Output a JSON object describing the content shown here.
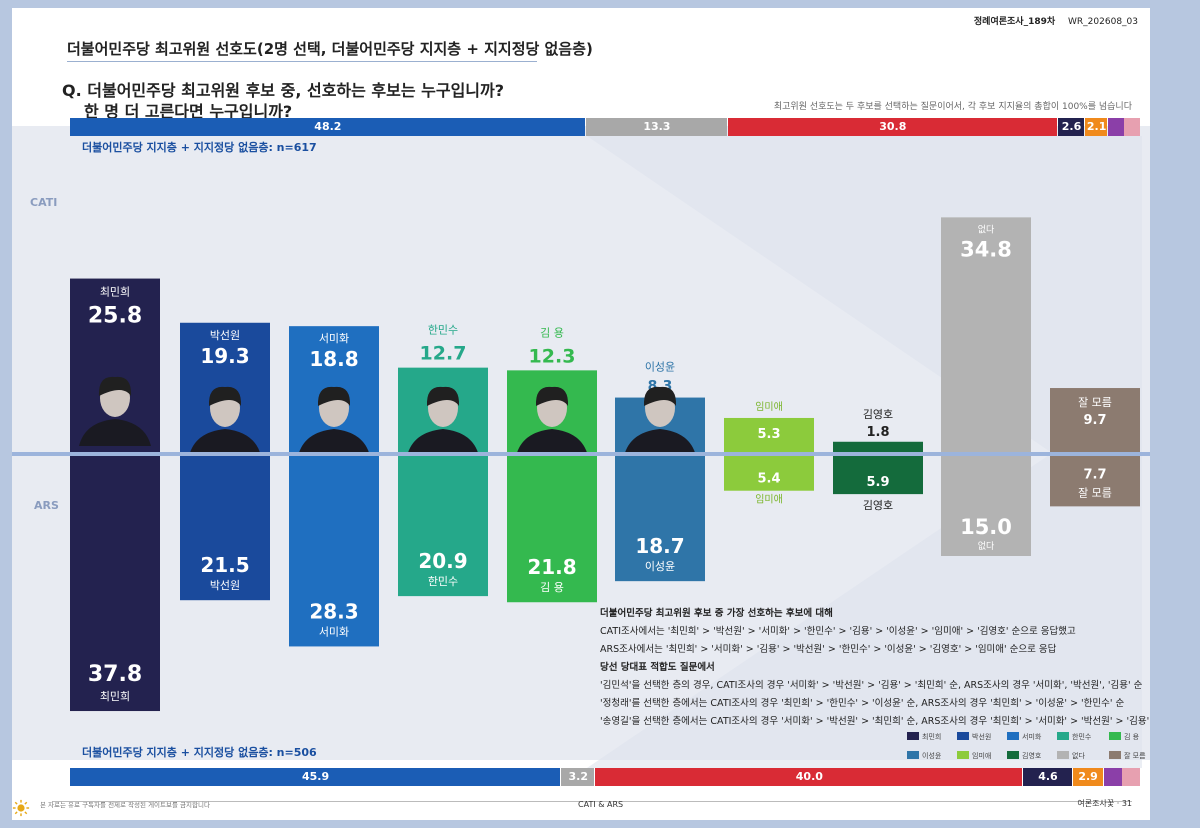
{
  "header": {
    "title": "더불어민주당 최고위원 선호도(2명 선택, 더불어민주당 지지층 + 지지정당 없음층)",
    "question_line1": "Q. 더불어민주당 최고위원 후보 중, 선호하는 후보는 누구입니까?",
    "question_line2": "한 명 더 고른다면 누구입니까?",
    "note": "최고위원 선호도는 두 후보를 선택하는 질문이어서, 각 후보 지지율의 총합이 100%를 넘습니다",
    "source_label": "정례여론조사_189차",
    "report_code": "WR_202608_03"
  },
  "group_top": "더불어민주당 지지층 + 지지정당 없음층: n=617",
  "group_bottom": "더불어민주당 지지층 + 지지정당 없음층: n=506",
  "mode_top": "CATI",
  "mode_bottom": "ARS",
  "colors": {
    "blue": "#1b5db5",
    "gray": "#a8a8a8",
    "red": "#d92b35",
    "navy": "#23224f",
    "orange": "#f08a1c",
    "purple": "#8b3fa8",
    "pink": "#e7a0b0"
  },
  "chart_data": {
    "type": "bar",
    "categories": [
      "최민희",
      "박선원",
      "서미화",
      "한민수",
      "김 용",
      "이성윤",
      "임미애",
      "김영호",
      "없다",
      "잘 모름"
    ],
    "series": [
      {
        "name": "CATI",
        "values": [
          25.8,
          19.3,
          18.8,
          12.7,
          12.3,
          8.3,
          5.3,
          1.8,
          34.8,
          9.7
        ]
      },
      {
        "name": "ARS",
        "values": [
          37.8,
          21.5,
          28.3,
          20.9,
          21.8,
          18.7,
          5.4,
          5.9,
          15.0,
          7.7
        ]
      }
    ],
    "bar_colors": [
      "#23224f",
      "#1a4a9c",
      "#1f6fc0",
      "#25a88a",
      "#34b94f",
      "#2f75a8",
      "#8ccb3c",
      "#146b3c",
      "#b3b3b3",
      "#8c7b70"
    ],
    "stacked_top": [
      48.2,
      13.3,
      30.8,
      2.6,
      2.1
    ],
    "stacked_bottom": [
      45.9,
      3.2,
      40.0,
      4.6,
      2.9
    ]
  },
  "stack_top_labels": [
    "48.2",
    "13.3",
    "30.8",
    "2.6",
    "2.1"
  ],
  "stack_bottom_labels": [
    "45.9",
    "3.2",
    "40.0",
    "4.6",
    "2.9"
  ],
  "paragraph": [
    "더불어민주당 최고위원 후보 중 가장 선호하는 후보에 대해",
    "CATI조사에서는 '최민희' > '박선원' > '서미화' > '한민수' > '김용' > '이성윤' > '임미애' > '김영호' 순으로 응답했고",
    "ARS조사에서는 '최민희' > '서미화' > '김용' > '박선원' > '한민수' > '이성윤' > '김영호' > '임미애' 순으로 응답",
    "당선 당대표 적합도 질문에서",
    "'김민석'을 선택한 층의 경우, CATI조사의 경우 '서미화' > '박선원' > '김용' > '최민희' 순, ARS조사의 경우 '서미화', '박선원', '김용' 순",
    "'정청래'를 선택한 층에서는 CATI조사의 경우 '최민희' > '한민수' > '이성윤' 순, ARS조사의 경우 '최민희' > '이성윤' > '한민수' 순",
    "'송영길'을 선택한 층에서는 CATI조사의 경우 '서미화' > '박선원' > '최민희' 순, ARS조사의 경우 '최민희' > '서미화' > '박선원' > '김용' 순"
  ],
  "legend": [
    "최민희",
    "박선원",
    "서미화",
    "한민수",
    "김 용",
    "이성윤",
    "임미애",
    "김영호",
    "없다",
    "잘 모름"
  ],
  "footer_left": "본 자료는 유료 구독자를 전제로 작성된 게이트보를 금지합니다",
  "footer_center": "CATI & ARS",
  "footer_right": "여론조사꽃 · 31"
}
